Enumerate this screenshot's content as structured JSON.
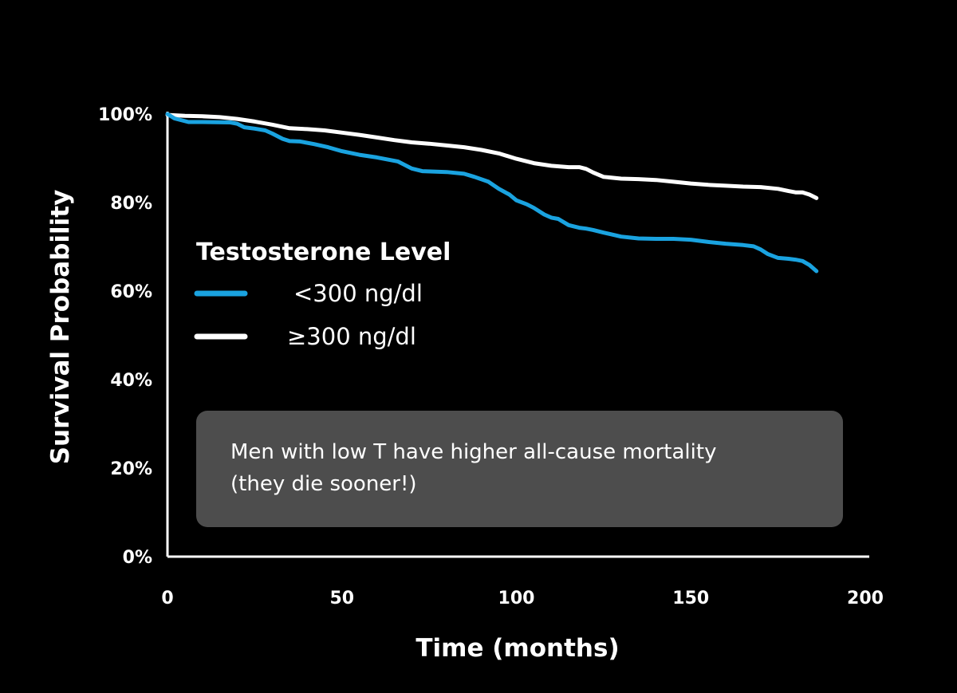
{
  "chart_data": {
    "type": "line",
    "title": "",
    "xlabel": "Time (months)",
    "ylabel": "Survival Probability",
    "xlim": [
      0,
      200
    ],
    "ylim": [
      0,
      100
    ],
    "x_ticks": [
      0,
      50,
      100,
      150,
      200
    ],
    "x_tick_labels": [
      "0",
      "50",
      "100",
      "150",
      "200"
    ],
    "y_ticks": [
      0,
      20,
      40,
      60,
      80,
      100
    ],
    "y_tick_labels": [
      "0%",
      "20%",
      "40%",
      "60%",
      "80%",
      "100%"
    ],
    "grid": false,
    "legend_title": "Testosterone Level",
    "legend_position": "center-left",
    "series": [
      {
        "name": "<300 ng/dl",
        "color": "#1aa3e0",
        "x": [
          0,
          2,
          6,
          10,
          18,
          20,
          22,
          25,
          28,
          30,
          33,
          35,
          38,
          42,
          46,
          50,
          55,
          60,
          66,
          68,
          70,
          73,
          80,
          85,
          88,
          92,
          95,
          98,
          100,
          103,
          105,
          108,
          110,
          112,
          115,
          118,
          120,
          122,
          125,
          130,
          135,
          140,
          145,
          150,
          155,
          160,
          165,
          168,
          170,
          172,
          175,
          178,
          180,
          182,
          184,
          185,
          186
        ],
        "values": [
          100,
          99,
          98.2,
          98.2,
          98.1,
          97.8,
          97,
          96.7,
          96.3,
          95.6,
          94.4,
          93.9,
          93.8,
          93.2,
          92.5,
          91.6,
          90.8,
          90.2,
          89.3,
          88.5,
          87.7,
          87.1,
          86.9,
          86.5,
          85.8,
          84.7,
          83.1,
          81.8,
          80.5,
          79.6,
          78.8,
          77.3,
          76.6,
          76.3,
          74.9,
          74.3,
          74.1,
          73.8,
          73.2,
          72.3,
          71.9,
          71.8,
          71.8,
          71.6,
          71.1,
          70.7,
          70.4,
          70.1,
          69.4,
          68.4,
          67.5,
          67.3,
          67.1,
          66.8,
          65.9,
          65.2,
          64.5
        ]
      },
      {
        "name": "≥300 ng/dl",
        "color": "#ffffff",
        "x": [
          0,
          5,
          10,
          15,
          20,
          25,
          30,
          35,
          40,
          45,
          50,
          55,
          60,
          65,
          70,
          75,
          80,
          85,
          90,
          95,
          100,
          105,
          110,
          115,
          118,
          120,
          122,
          125,
          130,
          135,
          140,
          145,
          150,
          155,
          160,
          165,
          170,
          175,
          178,
          180,
          182,
          184,
          186
        ],
        "values": [
          99.8,
          99.6,
          99.5,
          99.3,
          98.9,
          98.3,
          97.6,
          96.8,
          96.6,
          96.3,
          95.8,
          95.3,
          94.7,
          94.1,
          93.6,
          93.3,
          92.9,
          92.5,
          91.9,
          91.1,
          89.9,
          88.9,
          88.3,
          88,
          88,
          87.6,
          86.8,
          85.8,
          85.4,
          85.3,
          85.1,
          84.7,
          84.3,
          84,
          83.8,
          83.6,
          83.5,
          83.1,
          82.6,
          82.3,
          82.3,
          81.8,
          81
        ]
      }
    ],
    "annotations": [
      {
        "text_lines": [
          "Men with low T have higher all-cause mortality",
          "(they die sooner!)"
        ],
        "box_color": "#4d4d4d"
      }
    ]
  }
}
